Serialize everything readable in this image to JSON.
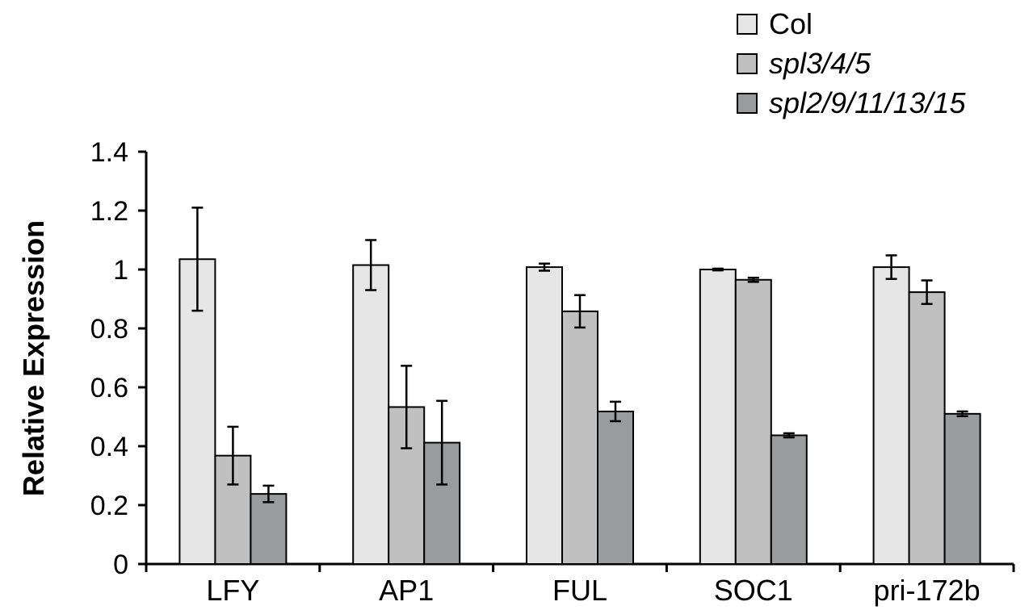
{
  "chart_data": {
    "type": "bar",
    "ylabel": "Relative Expression",
    "xlabel": "",
    "ylim": [
      0,
      1.4
    ],
    "yticks": [
      "0",
      "0.2",
      "0.4",
      "0.6",
      "0.8",
      "1",
      "1.2",
      "1.4"
    ],
    "categories": [
      "LFY",
      "AP1",
      "FUL",
      "SOC1",
      "pri-172b"
    ],
    "series": [
      {
        "name": "Col",
        "italic": false,
        "color": "#e6e6e6",
        "values": [
          1.035,
          1.015,
          1.008,
          1.0,
          1.008
        ],
        "errors": [
          0.175,
          0.085,
          0.012,
          0.003,
          0.04
        ]
      },
      {
        "name": "spl3/4/5",
        "italic": true,
        "color": "#bfc0bf",
        "values": [
          0.368,
          0.533,
          0.858,
          0.965,
          0.923
        ],
        "errors": [
          0.098,
          0.14,
          0.055,
          0.007,
          0.04
        ]
      },
      {
        "name": "spl2/9/11/13/15",
        "italic": true,
        "color": "#9a9b9c",
        "values": [
          0.238,
          0.412,
          0.518,
          0.437,
          0.51
        ],
        "errors": [
          0.028,
          0.142,
          0.033,
          0.007,
          0.008
        ]
      }
    ],
    "legend_position": "top-right",
    "grid": false
  }
}
